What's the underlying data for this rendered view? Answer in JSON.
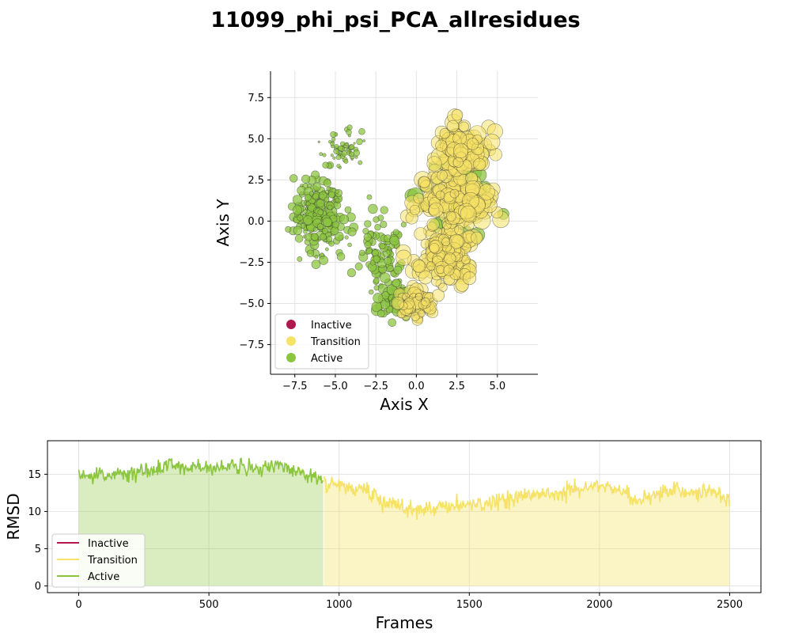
{
  "title": "11099_phi_psi_PCA_allresidues",
  "colors": {
    "Inactive": "#b0174d",
    "Transition": "#f5e266",
    "Active": "#8cc63f"
  },
  "chart_data": [
    {
      "type": "scatter",
      "xlabel": "Axis X",
      "ylabel": "Axis Y",
      "xlim": [
        -9,
        7.5
      ],
      "ylim": [
        -9.3,
        9.1
      ],
      "xticks": [
        -7.5,
        -5.0,
        -2.5,
        0.0,
        2.5,
        5.0
      ],
      "yticks": [
        -7.5,
        -5.0,
        -2.5,
        0.0,
        2.5,
        5.0,
        7.5
      ],
      "grid": true,
      "legend_position": "bottom-left",
      "legend": [
        "Inactive",
        "Transition",
        "Active"
      ],
      "clusters": [
        {
          "state": "Active",
          "center": [
            -6.0,
            0.5
          ],
          "spread": [
            1.4,
            2.2
          ],
          "n": 230,
          "size": [
            2,
            6
          ]
        },
        {
          "state": "Active",
          "center": [
            -4.3,
            4.4
          ],
          "spread": [
            1.0,
            0.9
          ],
          "n": 60,
          "size": [
            1,
            4
          ]
        },
        {
          "state": "Active",
          "center": [
            -2.2,
            -2.0
          ],
          "spread": [
            1.3,
            1.8
          ],
          "n": 90,
          "size": [
            3,
            6
          ]
        },
        {
          "state": "Active",
          "center": [
            -1.5,
            -4.8
          ],
          "spread": [
            1.0,
            0.9
          ],
          "n": 50,
          "size": [
            4,
            7
          ]
        },
        {
          "state": "Transition",
          "center": [
            2.8,
            4.3
          ],
          "spread": [
            1.2,
            1.3
          ],
          "n": 130,
          "size": [
            6,
            11
          ]
        },
        {
          "state": "Transition",
          "center": [
            2.4,
            1.3
          ],
          "spread": [
            2.2,
            1.6
          ],
          "n": 190,
          "size": [
            5,
            11
          ]
        },
        {
          "state": "Transition",
          "center": [
            1.8,
            -2.0
          ],
          "spread": [
            1.7,
            1.4
          ],
          "n": 160,
          "size": [
            5,
            10
          ]
        },
        {
          "state": "Transition",
          "center": [
            0.1,
            -5.0
          ],
          "spread": [
            1.0,
            0.9
          ],
          "n": 90,
          "size": [
            4,
            9
          ]
        },
        {
          "state": "Active",
          "center": [
            2.5,
            2.0
          ],
          "spread": [
            2.2,
            2.5
          ],
          "n": 40,
          "size": [
            5,
            10
          ]
        }
      ]
    },
    {
      "type": "line",
      "xlabel": "Frames",
      "ylabel": "RMSD",
      "xlim": [
        -120,
        2620
      ],
      "ylim": [
        -0.9,
        19.5
      ],
      "xticks": [
        0,
        500,
        1000,
        1500,
        2000,
        2500
      ],
      "yticks": [
        0,
        5,
        10,
        15
      ],
      "grid": true,
      "legend_position": "bottom-left",
      "legend": [
        "Inactive",
        "Transition",
        "Active"
      ],
      "n_frames": 2500,
      "segments": [
        {
          "from": 0,
          "to": 940,
          "state": "Active"
        },
        {
          "from": 940,
          "to": 2500,
          "state": "Transition"
        }
      ],
      "rmsd_profile": [
        [
          0,
          14.8
        ],
        [
          100,
          15.0
        ],
        [
          200,
          15.0
        ],
        [
          300,
          15.8
        ],
        [
          350,
          16.3
        ],
        [
          400,
          15.8
        ],
        [
          500,
          15.8
        ],
        [
          600,
          16.0
        ],
        [
          700,
          15.8
        ],
        [
          800,
          15.8
        ],
        [
          900,
          14.8
        ],
        [
          1000,
          13.6
        ],
        [
          1100,
          12.8
        ],
        [
          1200,
          10.8
        ],
        [
          1300,
          10.2
        ],
        [
          1400,
          10.6
        ],
        [
          1500,
          11.0
        ],
        [
          1600,
          11.2
        ],
        [
          1700,
          12.2
        ],
        [
          1800,
          12.5
        ],
        [
          1900,
          13.0
        ],
        [
          2000,
          13.4
        ],
        [
          2100,
          12.6
        ],
        [
          2150,
          11.2
        ],
        [
          2250,
          12.8
        ],
        [
          2400,
          12.6
        ],
        [
          2500,
          11.8
        ]
      ]
    }
  ]
}
